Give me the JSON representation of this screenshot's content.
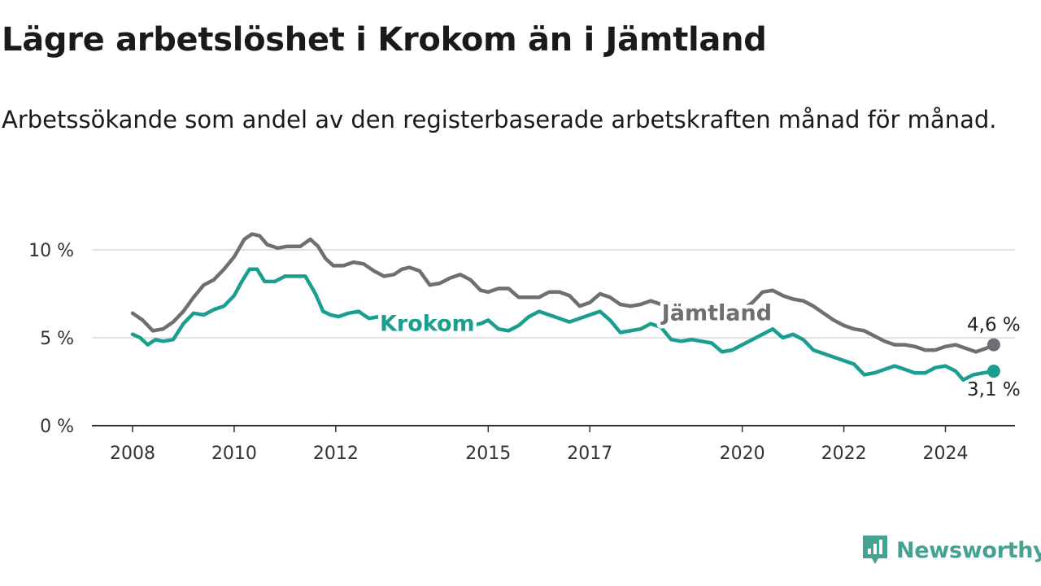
{
  "title": "Lägre arbetslöshet i Krokom än i Jämtland",
  "subtitle": "Arbetssökande som andel av den registerbaserade arbetskraften månad för månad.",
  "brand": {
    "name": "Newsworthy",
    "icon": "newsworthy-logo-icon",
    "color": "#45a293"
  },
  "chart_data": {
    "type": "line",
    "title": "Lägre arbetslöshet i Krokom än i Jämtland",
    "subtitle": "Arbetssökande som andel av den registerbaserade arbetskraften månad för månad.",
    "xlabel": "",
    "ylabel": "",
    "x_unit": "year",
    "xlim": [
      2008,
      2025.5
    ],
    "ylim": [
      0,
      11
    ],
    "yticks": [
      0,
      5,
      10
    ],
    "ytick_labels": [
      "0 %",
      "5 %",
      "10 %"
    ],
    "xticks": [
      2008,
      2010,
      2012,
      2015,
      2017,
      2020,
      2022,
      2024
    ],
    "xtick_labels": [
      "2008",
      "2010",
      "2012",
      "2015",
      "2017",
      "2020",
      "2022",
      "2024"
    ],
    "grid": "horizontal",
    "legend": "inline labels",
    "series": [
      {
        "name": "Jämtland",
        "color": "#6e6e73",
        "end_label": "4,6 %",
        "label_at": 2019.5,
        "points": [
          [
            2008.0,
            6.4
          ],
          [
            2008.2,
            6.0
          ],
          [
            2008.4,
            5.4
          ],
          [
            2008.6,
            5.5
          ],
          [
            2008.8,
            5.9
          ],
          [
            2009.0,
            6.5
          ],
          [
            2009.2,
            7.3
          ],
          [
            2009.4,
            8.0
          ],
          [
            2009.6,
            8.3
          ],
          [
            2009.8,
            8.9
          ],
          [
            2010.0,
            9.6
          ],
          [
            2010.2,
            10.6
          ],
          [
            2010.35,
            10.9
          ],
          [
            2010.5,
            10.8
          ],
          [
            2010.65,
            10.3
          ],
          [
            2010.85,
            10.1
          ],
          [
            2011.05,
            10.2
          ],
          [
            2011.3,
            10.2
          ],
          [
            2011.5,
            10.6
          ],
          [
            2011.65,
            10.2
          ],
          [
            2011.8,
            9.5
          ],
          [
            2011.95,
            9.1
          ],
          [
            2012.15,
            9.1
          ],
          [
            2012.35,
            9.3
          ],
          [
            2012.55,
            9.2
          ],
          [
            2012.75,
            8.8
          ],
          [
            2012.95,
            8.5
          ],
          [
            2013.15,
            8.6
          ],
          [
            2013.3,
            8.9
          ],
          [
            2013.45,
            9.0
          ],
          [
            2013.65,
            8.8
          ],
          [
            2013.85,
            8.0
          ],
          [
            2014.05,
            8.1
          ],
          [
            2014.25,
            8.4
          ],
          [
            2014.45,
            8.6
          ],
          [
            2014.65,
            8.3
          ],
          [
            2014.85,
            7.7
          ],
          [
            2015.0,
            7.6
          ],
          [
            2015.2,
            7.8
          ],
          [
            2015.4,
            7.8
          ],
          [
            2015.6,
            7.3
          ],
          [
            2015.8,
            7.3
          ],
          [
            2016.0,
            7.3
          ],
          [
            2016.2,
            7.6
          ],
          [
            2016.4,
            7.6
          ],
          [
            2016.6,
            7.4
          ],
          [
            2016.8,
            6.8
          ],
          [
            2017.0,
            7.0
          ],
          [
            2017.2,
            7.5
          ],
          [
            2017.4,
            7.3
          ],
          [
            2017.6,
            6.9
          ],
          [
            2017.8,
            6.8
          ],
          [
            2018.0,
            6.9
          ],
          [
            2018.2,
            7.1
          ],
          [
            2018.4,
            6.9
          ],
          [
            2018.6,
            6.9
          ],
          [
            2018.8,
            6.6
          ],
          [
            2019.0,
            6.4
          ],
          [
            2019.2,
            6.3
          ],
          [
            2019.4,
            6.5
          ],
          [
            2019.6,
            6.4
          ],
          [
            2019.8,
            6.5
          ],
          [
            2020.0,
            6.6
          ],
          [
            2020.2,
            7.0
          ],
          [
            2020.4,
            7.6
          ],
          [
            2020.6,
            7.7
          ],
          [
            2020.8,
            7.4
          ],
          [
            2021.0,
            7.2
          ],
          [
            2021.2,
            7.1
          ],
          [
            2021.4,
            6.8
          ],
          [
            2021.6,
            6.4
          ],
          [
            2021.8,
            6.0
          ],
          [
            2022.0,
            5.7
          ],
          [
            2022.2,
            5.5
          ],
          [
            2022.4,
            5.4
          ],
          [
            2022.6,
            5.1
          ],
          [
            2022.8,
            4.8
          ],
          [
            2023.0,
            4.6
          ],
          [
            2023.2,
            4.6
          ],
          [
            2023.4,
            4.5
          ],
          [
            2023.6,
            4.3
          ],
          [
            2023.8,
            4.3
          ],
          [
            2024.0,
            4.5
          ],
          [
            2024.2,
            4.6
          ],
          [
            2024.4,
            4.4
          ],
          [
            2024.6,
            4.2
          ],
          [
            2024.8,
            4.4
          ],
          [
            2024.95,
            4.6
          ]
        ]
      },
      {
        "name": "Krokom",
        "color": "#1a9e8f",
        "end_label": "3,1 %",
        "label_at": 2013.8,
        "points": [
          [
            2008.0,
            5.2
          ],
          [
            2008.15,
            5.0
          ],
          [
            2008.3,
            4.6
          ],
          [
            2008.45,
            4.9
          ],
          [
            2008.6,
            4.8
          ],
          [
            2008.8,
            4.9
          ],
          [
            2009.0,
            5.8
          ],
          [
            2009.2,
            6.4
          ],
          [
            2009.4,
            6.3
          ],
          [
            2009.6,
            6.6
          ],
          [
            2009.8,
            6.8
          ],
          [
            2010.0,
            7.4
          ],
          [
            2010.15,
            8.2
          ],
          [
            2010.3,
            8.9
          ],
          [
            2010.45,
            8.9
          ],
          [
            2010.6,
            8.2
          ],
          [
            2010.8,
            8.2
          ],
          [
            2011.0,
            8.5
          ],
          [
            2011.2,
            8.5
          ],
          [
            2011.4,
            8.5
          ],
          [
            2011.6,
            7.5
          ],
          [
            2011.75,
            6.5
          ],
          [
            2011.9,
            6.3
          ],
          [
            2012.05,
            6.2
          ],
          [
            2012.25,
            6.4
          ],
          [
            2012.45,
            6.5
          ],
          [
            2012.65,
            6.1
          ],
          [
            2012.85,
            6.2
          ],
          [
            2013.05,
            6.1
          ],
          [
            2013.25,
            6.2
          ],
          [
            2013.45,
            5.9
          ],
          [
            2013.65,
            5.7
          ],
          [
            2013.85,
            5.8
          ],
          [
            2014.05,
            5.8
          ],
          [
            2014.25,
            5.7
          ],
          [
            2014.45,
            5.6
          ],
          [
            2014.65,
            5.7
          ],
          [
            2014.85,
            5.8
          ],
          [
            2015.0,
            6.0
          ],
          [
            2015.2,
            5.5
          ],
          [
            2015.4,
            5.4
          ],
          [
            2015.6,
            5.7
          ],
          [
            2015.8,
            6.2
          ],
          [
            2016.0,
            6.5
          ],
          [
            2016.2,
            6.3
          ],
          [
            2016.4,
            6.1
          ],
          [
            2016.6,
            5.9
          ],
          [
            2016.8,
            6.1
          ],
          [
            2017.0,
            6.3
          ],
          [
            2017.2,
            6.5
          ],
          [
            2017.4,
            6.0
          ],
          [
            2017.6,
            5.3
          ],
          [
            2017.8,
            5.4
          ],
          [
            2018.0,
            5.5
          ],
          [
            2018.2,
            5.8
          ],
          [
            2018.4,
            5.6
          ],
          [
            2018.6,
            4.9
          ],
          [
            2018.8,
            4.8
          ],
          [
            2019.0,
            4.9
          ],
          [
            2019.2,
            4.8
          ],
          [
            2019.4,
            4.7
          ],
          [
            2019.6,
            4.2
          ],
          [
            2019.8,
            4.3
          ],
          [
            2020.0,
            4.6
          ],
          [
            2020.2,
            4.9
          ],
          [
            2020.4,
            5.2
          ],
          [
            2020.6,
            5.5
          ],
          [
            2020.8,
            5.0
          ],
          [
            2021.0,
            5.2
          ],
          [
            2021.2,
            4.9
          ],
          [
            2021.4,
            4.3
          ],
          [
            2021.6,
            4.1
          ],
          [
            2021.8,
            3.9
          ],
          [
            2022.0,
            3.7
          ],
          [
            2022.2,
            3.5
          ],
          [
            2022.4,
            2.9
          ],
          [
            2022.6,
            3.0
          ],
          [
            2022.8,
            3.2
          ],
          [
            2023.0,
            3.4
          ],
          [
            2023.2,
            3.2
          ],
          [
            2023.4,
            3.0
          ],
          [
            2023.6,
            3.0
          ],
          [
            2023.8,
            3.3
          ],
          [
            2024.0,
            3.4
          ],
          [
            2024.2,
            3.1
          ],
          [
            2024.35,
            2.6
          ],
          [
            2024.55,
            2.9
          ],
          [
            2024.75,
            3.0
          ],
          [
            2024.95,
            3.1
          ]
        ]
      }
    ]
  }
}
